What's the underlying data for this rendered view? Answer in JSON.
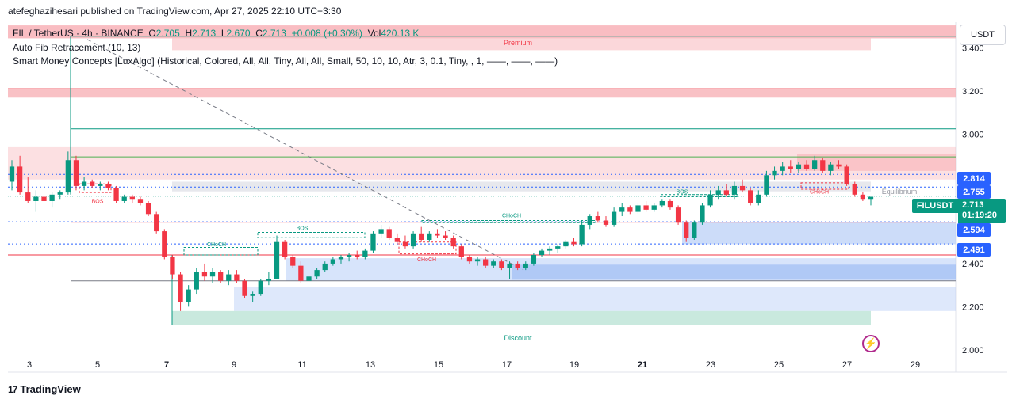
{
  "publisher": "atefeghazihesari published on TradingView.com, Apr 27, 2025 22:10 UTC+3:30",
  "legend": {
    "symbol": "FIL / TetherUS · 4h · BINANCE",
    "o_label": "O",
    "o": "2.705",
    "h_label": "H",
    "h": "2.713",
    "l_label": "L",
    "l": "2.670",
    "c_label": "C",
    "c": "2.713",
    "change": "+0.008 (+0.30%)",
    "vol_label": "Vol",
    "vol": "420.13 K",
    "indicator1": "Auto Fib Retracement (10, 13)",
    "indicator2": "Smart Money Concepts [LuxAlgo] (Historical, Colored, All, All, Tiny, All, All, Small, 50, 10, 10, Atr, 3, 0.1, Tiny, , 1, ——, ——, ——)"
  },
  "currency": "USDT",
  "ticker_tag": "FILUSDT",
  "last_price": "2.713",
  "countdown": "01:19:20",
  "price_tags": [
    "2.814",
    "2.755",
    "2.594",
    "2.491"
  ],
  "zone_labels": {
    "premium": "Premium",
    "discount": "Discount",
    "equilibrium": "Equilibrium"
  },
  "structure_labels": [
    "BOS",
    "CHoCH",
    "BOS",
    "CHoCH",
    "CHoCH",
    "BOS",
    "CHoCH"
  ],
  "footer": "TradingView",
  "colors": {
    "up": "#089981",
    "down": "#f23645",
    "accent": "#2962ff",
    "premium": "#f7a7ad",
    "discount": "#b2dfd0",
    "demand": "#b6cdf7"
  },
  "chart_data": {
    "type": "candlestick",
    "y_axis": {
      "range": [
        1.97,
        3.52
      ],
      "ticks": [
        "3.400",
        "3.200",
        "3.000",
        "2.800",
        "2.600",
        "2.400",
        "2.200",
        "2.000"
      ],
      "tick_values": [
        3.4,
        3.2,
        3.0,
        2.8,
        2.6,
        2.4,
        2.2,
        2.0
      ]
    },
    "x_axis": {
      "ticks": [
        "3",
        "5",
        "7",
        "9",
        "11",
        "13",
        "15",
        "17",
        "19",
        "21",
        "23",
        "25",
        "27",
        "29"
      ],
      "bold_ticks": [
        "7",
        "21"
      ]
    },
    "candles": [
      [
        2.78,
        2.88,
        2.74,
        2.85
      ],
      [
        2.85,
        2.9,
        2.72,
        2.73
      ],
      [
        2.73,
        2.8,
        2.68,
        2.69
      ],
      [
        2.69,
        2.74,
        2.64,
        2.71
      ],
      [
        2.71,
        2.75,
        2.66,
        2.69
      ],
      [
        2.69,
        2.73,
        2.66,
        2.72
      ],
      [
        2.72,
        2.74,
        2.7,
        2.73
      ],
      [
        2.73,
        2.92,
        2.72,
        2.88
      ],
      [
        2.88,
        2.9,
        2.74,
        2.76
      ],
      [
        2.76,
        2.8,
        2.74,
        2.78
      ],
      [
        2.78,
        2.79,
        2.75,
        2.76
      ],
      [
        2.76,
        2.78,
        2.74,
        2.77
      ],
      [
        2.77,
        2.78,
        2.74,
        2.75
      ],
      [
        2.75,
        2.76,
        2.68,
        2.69
      ],
      [
        2.69,
        2.72,
        2.68,
        2.71
      ],
      [
        2.71,
        2.72,
        2.68,
        2.7
      ],
      [
        2.7,
        2.71,
        2.67,
        2.68
      ],
      [
        2.68,
        2.69,
        2.62,
        2.63
      ],
      [
        2.63,
        2.64,
        2.54,
        2.55
      ],
      [
        2.55,
        2.56,
        2.42,
        2.43
      ],
      [
        2.43,
        2.44,
        2.33,
        2.35
      ],
      [
        2.35,
        2.36,
        2.18,
        2.22
      ],
      [
        2.22,
        2.3,
        2.2,
        2.28
      ],
      [
        2.28,
        2.38,
        2.26,
        2.36
      ],
      [
        2.36,
        2.4,
        2.32,
        2.34
      ],
      [
        2.34,
        2.38,
        2.31,
        2.36
      ],
      [
        2.36,
        2.37,
        2.31,
        2.32
      ],
      [
        2.32,
        2.37,
        2.3,
        2.35
      ],
      [
        2.35,
        2.37,
        2.31,
        2.32
      ],
      [
        2.32,
        2.33,
        2.24,
        2.25
      ],
      [
        2.25,
        2.27,
        2.22,
        2.26
      ],
      [
        2.26,
        2.33,
        2.25,
        2.32
      ],
      [
        2.32,
        2.36,
        2.3,
        2.33
      ],
      [
        2.33,
        2.53,
        2.33,
        2.5
      ],
      [
        2.5,
        2.51,
        2.42,
        2.43
      ],
      [
        2.43,
        2.44,
        2.38,
        2.39
      ],
      [
        2.39,
        2.41,
        2.31,
        2.32
      ],
      [
        2.32,
        2.35,
        2.31,
        2.34
      ],
      [
        2.34,
        2.38,
        2.33,
        2.37
      ],
      [
        2.37,
        2.41,
        2.36,
        2.4
      ],
      [
        2.4,
        2.43,
        2.39,
        2.42
      ],
      [
        2.42,
        2.44,
        2.4,
        2.43
      ],
      [
        2.43,
        2.45,
        2.41,
        2.44
      ],
      [
        2.44,
        2.46,
        2.42,
        2.43
      ],
      [
        2.43,
        2.47,
        2.42,
        2.46
      ],
      [
        2.46,
        2.55,
        2.45,
        2.54
      ],
      [
        2.54,
        2.58,
        2.52,
        2.56
      ],
      [
        2.56,
        2.57,
        2.51,
        2.52
      ],
      [
        2.52,
        2.54,
        2.49,
        2.5
      ],
      [
        2.5,
        2.53,
        2.47,
        2.48
      ],
      [
        2.48,
        2.55,
        2.47,
        2.54
      ],
      [
        2.54,
        2.57,
        2.5,
        2.51
      ],
      [
        2.51,
        2.55,
        2.5,
        2.54
      ],
      [
        2.54,
        2.56,
        2.52,
        2.53
      ],
      [
        2.53,
        2.55,
        2.51,
        2.52
      ],
      [
        2.52,
        2.53,
        2.47,
        2.48
      ],
      [
        2.48,
        2.49,
        2.42,
        2.43
      ],
      [
        2.43,
        2.44,
        2.4,
        2.41
      ],
      [
        2.41,
        2.43,
        2.39,
        2.42
      ],
      [
        2.42,
        2.43,
        2.38,
        2.39
      ],
      [
        2.39,
        2.42,
        2.38,
        2.41
      ],
      [
        2.41,
        2.42,
        2.37,
        2.38
      ],
      [
        2.38,
        2.41,
        2.33,
        2.4
      ],
      [
        2.4,
        2.41,
        2.37,
        2.38
      ],
      [
        2.38,
        2.41,
        2.37,
        2.4
      ],
      [
        2.4,
        2.45,
        2.39,
        2.44
      ],
      [
        2.44,
        2.47,
        2.43,
        2.46
      ],
      [
        2.46,
        2.48,
        2.44,
        2.47
      ],
      [
        2.47,
        2.49,
        2.45,
        2.48
      ],
      [
        2.48,
        2.51,
        2.47,
        2.5
      ],
      [
        2.5,
        2.52,
        2.48,
        2.49
      ],
      [
        2.49,
        2.6,
        2.48,
        2.58
      ],
      [
        2.58,
        2.63,
        2.56,
        2.62
      ],
      [
        2.62,
        2.64,
        2.59,
        2.6
      ],
      [
        2.6,
        2.62,
        2.57,
        2.58
      ],
      [
        2.58,
        2.66,
        2.57,
        2.64
      ],
      [
        2.64,
        2.68,
        2.62,
        2.66
      ],
      [
        2.66,
        2.67,
        2.63,
        2.64
      ],
      [
        2.64,
        2.68,
        2.63,
        2.67
      ],
      [
        2.67,
        2.69,
        2.64,
        2.65
      ],
      [
        2.65,
        2.68,
        2.64,
        2.67
      ],
      [
        2.67,
        2.7,
        2.66,
        2.69
      ],
      [
        2.69,
        2.7,
        2.65,
        2.66
      ],
      [
        2.66,
        2.67,
        2.58,
        2.59
      ],
      [
        2.59,
        2.6,
        2.5,
        2.52
      ],
      [
        2.52,
        2.6,
        2.51,
        2.59
      ],
      [
        2.59,
        2.68,
        2.58,
        2.67
      ],
      [
        2.67,
        2.74,
        2.66,
        2.72
      ],
      [
        2.72,
        2.76,
        2.7,
        2.74
      ],
      [
        2.74,
        2.77,
        2.71,
        2.72
      ],
      [
        2.72,
        2.78,
        2.7,
        2.76
      ],
      [
        2.76,
        2.79,
        2.73,
        2.74
      ],
      [
        2.74,
        2.75,
        2.67,
        2.68
      ],
      [
        2.68,
        2.74,
        2.67,
        2.72
      ],
      [
        2.72,
        2.83,
        2.71,
        2.81
      ],
      [
        2.81,
        2.85,
        2.79,
        2.83
      ],
      [
        2.83,
        2.87,
        2.81,
        2.85
      ],
      [
        2.85,
        2.88,
        2.82,
        2.84
      ],
      [
        2.84,
        2.87,
        2.82,
        2.86
      ],
      [
        2.86,
        2.88,
        2.83,
        2.84
      ],
      [
        2.84,
        2.9,
        2.83,
        2.88
      ],
      [
        2.88,
        2.89,
        2.82,
        2.83
      ],
      [
        2.83,
        2.87,
        2.81,
        2.86
      ],
      [
        2.86,
        2.88,
        2.84,
        2.85
      ],
      [
        2.85,
        2.86,
        2.76,
        2.77
      ],
      [
        2.77,
        2.78,
        2.71,
        2.72
      ],
      [
        2.72,
        2.73,
        2.69,
        2.7
      ],
      [
        2.7,
        2.71,
        2.67,
        2.71
      ]
    ]
  }
}
